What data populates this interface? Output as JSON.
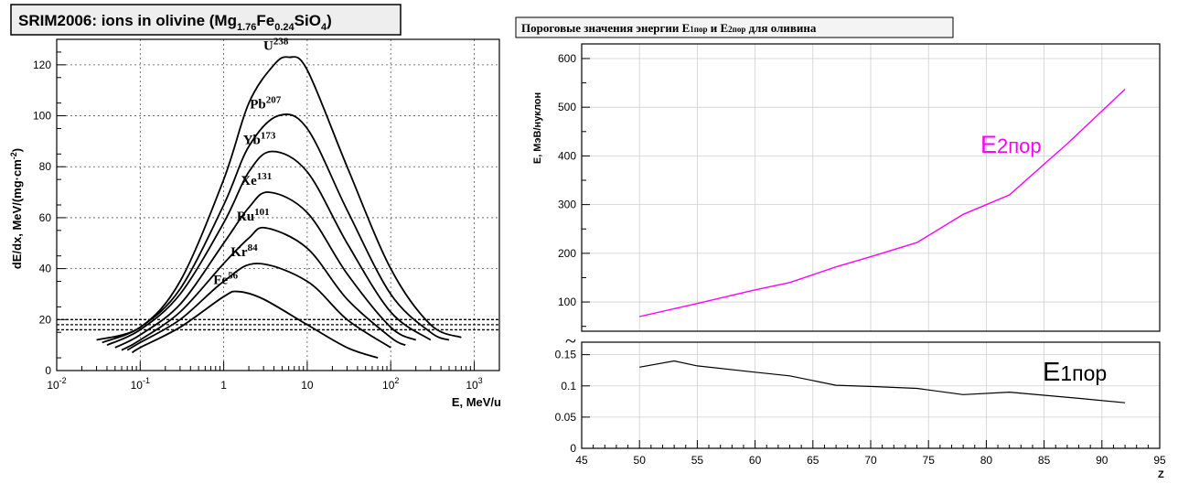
{
  "chart_data": [
    {
      "type": "line",
      "title": "SRIM2006: ions in olivine (Mg",
      "title_sub1": "1.76",
      "title_mid": "Fe",
      "title_sub2": "0.24",
      "title_mid2": "SiO",
      "title_sub3": "4",
      "title_end": ")",
      "xlabel": "E, MeV/u",
      "ylabel": "dE/dx, MeV/(mg·cm",
      "ylabel_sup": "-2",
      "ylabel_end": ")",
      "x_scale": "log",
      "xlim": [
        0.01,
        2000
      ],
      "ylim": [
        0,
        130
      ],
      "x_ticks": [
        {
          "base": "10",
          "exp": "-2"
        },
        {
          "base": "10",
          "exp": "-1"
        },
        {
          "base": "1",
          "exp": ""
        },
        {
          "base": "10",
          "exp": ""
        },
        {
          "base": "10",
          "exp": "2"
        },
        {
          "base": "10",
          "exp": "3"
        }
      ],
      "y_ticks": [
        "0",
        "20",
        "40",
        "60",
        "80",
        "100",
        "120"
      ],
      "threshold_lines": [
        16,
        18,
        20
      ],
      "series": [
        {
          "name": "U",
          "mass": "238",
          "peak_x": 6.0,
          "peak_y": 123,
          "x": [
            0.03,
            0.1,
            0.3,
            1,
            2,
            4,
            6,
            10,
            30,
            100,
            300,
            700
          ],
          "y": [
            12,
            17,
            35,
            75,
            105,
            120,
            123,
            118,
            80,
            40,
            18,
            13
          ]
        },
        {
          "name": "Pb",
          "mass": "207",
          "peak_x": 4.5,
          "peak_y": 100,
          "x": [
            0.035,
            0.1,
            0.3,
            1,
            2,
            4.5,
            10,
            30,
            100,
            300,
            500
          ],
          "y": [
            11,
            17,
            32,
            65,
            88,
            100,
            95,
            63,
            30,
            15,
            12
          ]
        },
        {
          "name": "Yb",
          "mass": "173",
          "peak_x": 3.8,
          "peak_y": 86,
          "x": [
            0.04,
            0.1,
            0.3,
            1,
            2,
            3.8,
            10,
            30,
            100,
            300
          ],
          "y": [
            10,
            16,
            30,
            58,
            78,
            86,
            78,
            50,
            23,
            12
          ]
        },
        {
          "name": "Xe",
          "mass": "131",
          "peak_x": 3.5,
          "peak_y": 70,
          "x": [
            0.05,
            0.1,
            0.3,
            1,
            2,
            3.5,
            10,
            30,
            100,
            200
          ],
          "y": [
            9,
            14,
            26,
            50,
            64,
            70,
            62,
            38,
            17,
            12
          ]
        },
        {
          "name": "Ru",
          "mass": "101",
          "peak_x": 3.2,
          "peak_y": 56,
          "x": [
            0.06,
            0.1,
            0.3,
            1,
            2,
            3.2,
            10,
            30,
            100,
            150
          ],
          "y": [
            8,
            12,
            23,
            42,
            52,
            56,
            48,
            28,
            13,
            10
          ]
        },
        {
          "name": "Kr",
          "mass": "84",
          "peak_x": 2.5,
          "peak_y": 42,
          "x": [
            0.07,
            0.1,
            0.3,
            1,
            2.5,
            10,
            30,
            100
          ],
          "y": [
            8,
            11,
            20,
            35,
            42,
            35,
            20,
            9
          ]
        },
        {
          "name": "Fe",
          "mass": "56",
          "peak_x": 1.5,
          "peak_y": 31,
          "x": [
            0.08,
            0.1,
            0.3,
            1,
            1.5,
            3,
            10,
            30,
            70
          ],
          "y": [
            7,
            9,
            17,
            29,
            31,
            28,
            18,
            9,
            5
          ]
        }
      ]
    },
    {
      "type": "line",
      "title": "Пороговые значения энергии E",
      "title_sub1": "1пор",
      "title_mid": " и E",
      "title_sub2": "2пор",
      "title_end": " для оливина",
      "xlabel": "Z",
      "ylabel": "E, МэВ/нуклон",
      "xlim": [
        45,
        95
      ],
      "x_ticks": [
        "45",
        "50",
        "55",
        "60",
        "65",
        "70",
        "75",
        "80",
        "85",
        "90",
        "95"
      ],
      "break_symbol": "~",
      "upper_panel": {
        "ylim": [
          40,
          630
        ],
        "y_ticks": [
          "100",
          "200",
          "300",
          "400",
          "500",
          "600"
        ],
        "series": {
          "name": "E",
          "name_sub": "2пор",
          "color": "#ff00ff",
          "x": [
            50,
            55,
            60,
            63,
            67,
            70,
            74,
            78,
            82,
            87,
            92
          ],
          "y": [
            70,
            97,
            125,
            140,
            172,
            193,
            222,
            280,
            320,
            425,
            537
          ]
        }
      },
      "lower_panel": {
        "ylim": [
          0,
          0.17
        ],
        "y_ticks": [
          "0",
          "0.05",
          "0.1",
          "0.15"
        ],
        "series": {
          "name": "E",
          "name_sub": "1пор",
          "color": "#000000",
          "x": [
            50,
            53,
            55,
            60,
            63,
            67,
            70,
            74,
            78,
            82,
            85,
            88,
            92
          ],
          "y": [
            0.13,
            0.14,
            0.132,
            0.122,
            0.116,
            0.101,
            0.099,
            0.096,
            0.086,
            0.09,
            0.085,
            0.08,
            0.073
          ]
        }
      }
    }
  ]
}
